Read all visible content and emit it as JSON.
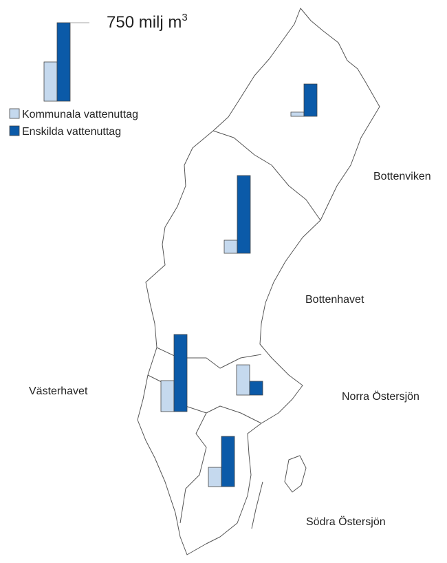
{
  "map": {
    "scale": {
      "value": 750,
      "unit": "milj m",
      "exponent": "3",
      "sample_values": [
        375,
        750
      ]
    },
    "legend": [
      {
        "name": "Kommunala vattenuttag",
        "color": "#c5d9ee"
      },
      {
        "name": "Enskilda vattenuttag",
        "color": "#0b5aa8"
      }
    ],
    "regions": [
      {
        "name": "Bottenviken",
        "values": [
          40,
          309
        ]
      },
      {
        "name": "Bottenhavet",
        "values": [
          125,
          743
        ]
      },
      {
        "name": "Västerhavet",
        "values": [
          296,
          737
        ]
      },
      {
        "name": "Norra Östersjön",
        "values": [
          289,
          132
        ]
      },
      {
        "name": "Södra Östersjön",
        "values": [
          184,
          480
        ]
      }
    ]
  }
}
